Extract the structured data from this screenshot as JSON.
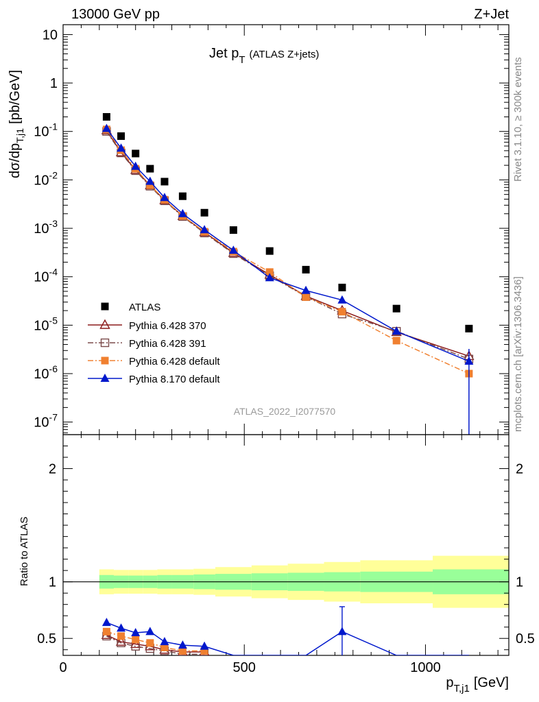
{
  "header": {
    "left": "13000 GeV pp",
    "right": "Z+Jet"
  },
  "plot_title": "Jet p",
  "plot_title_sub": "T",
  "plot_title_suffix": "(ATLAS Z+jets)",
  "analysis_id": "ATLAS_2022_I2077570",
  "side_top": "Rivet 3.1.10, ≥ 300k events",
  "side_bottom": "mcplots.cern.ch [arXiv:1306.3436]",
  "ylabel_main": "dσ/dp",
  "ylabel_main_sub": "T,j1",
  "ylabel_main_unit": "[pb/GeV]",
  "ylabel_ratio": "Ratio to ATLAS",
  "xlabel": "p",
  "xlabel_sub": "T,j1",
  "xlabel_unit": "[GeV]",
  "chart_data": {
    "type": "scatter",
    "x_axis": {
      "range": [
        0,
        1230
      ],
      "ticks": [
        0,
        500,
        1000
      ]
    },
    "y_axis_main": {
      "scale": "log",
      "range": [
        5.5e-08,
        16
      ],
      "tick_exponents": [
        -7,
        -6,
        -5,
        -4,
        -3,
        -2,
        -1,
        0,
        1
      ]
    },
    "y_axis_ratio": {
      "range": [
        0.35,
        2.3
      ],
      "ticks": [
        0.5,
        1,
        2
      ]
    },
    "legend": "bottom-left",
    "x": [
      120,
      160,
      200,
      240,
      280,
      330,
      390,
      470,
      570,
      670,
      770,
      920,
      1120
    ],
    "bin_edges": [
      100,
      140,
      180,
      220,
      260,
      300,
      360,
      420,
      520,
      620,
      720,
      820,
      1020,
      1230
    ],
    "data_band_inner": [
      0.06,
      0.055,
      0.055,
      0.055,
      0.06,
      0.06,
      0.065,
      0.07,
      0.075,
      0.08,
      0.085,
      0.09,
      0.11
    ],
    "data_band_outer": [
      0.11,
      0.105,
      0.105,
      0.105,
      0.11,
      0.11,
      0.115,
      0.13,
      0.145,
      0.16,
      0.175,
      0.19,
      0.23
    ],
    "series": [
      {
        "name": "ATLAS",
        "color": "#000000",
        "marker": "square",
        "values": [
          0.2,
          0.08,
          0.035,
          0.017,
          0.0092,
          0.0046,
          0.0021,
          0.00092,
          0.00034,
          0.00014,
          6e-05,
          2.2e-05,
          8.5e-06
        ]
      },
      {
        "name": "Pythia 6.428 370",
        "color": "#8b1a1a",
        "marker": "triangle-open",
        "dash": "",
        "values": [
          0.105,
          0.037,
          0.016,
          0.0077,
          0.0038,
          0.0018,
          0.00083,
          0.00031,
          0.00011,
          4e-05,
          2e-05,
          7.2e-06,
          2.3e-06
        ],
        "ratio": [
          0.53,
          0.47,
          0.45,
          0.43,
          0.4,
          0.38,
          0.38
        ]
      },
      {
        "name": "Pythia 6.428 391",
        "color": "#7a4a4a",
        "marker": "square-open",
        "dash": "8,3,2,3",
        "values": [
          0.1,
          0.036,
          0.0155,
          0.0074,
          0.0037,
          0.00175,
          0.0008,
          0.0003,
          0.000105,
          3.9e-05,
          1.7e-05,
          7.5e-06,
          2e-06
        ],
        "ratio": [
          0.52,
          0.46,
          0.43,
          0.41,
          0.39,
          0.36,
          0.36
        ]
      },
      {
        "name": "Pythia 6.428 default",
        "color": "#f08030",
        "marker": "square",
        "dash": "8,3,2,3",
        "values": [
          0.11,
          0.041,
          0.017,
          0.0078,
          0.0039,
          0.0018,
          0.00085,
          0.00033,
          0.000125,
          3.8e-05,
          1.9e-05,
          4.8e-06,
          1e-06
        ],
        "ratio": [
          0.56,
          0.52,
          0.49,
          0.46,
          0.42,
          0.39,
          0.39
        ]
      },
      {
        "name": "Pythia 8.170 default",
        "color": "#0018cc",
        "marker": "triangle",
        "dash": "",
        "values": [
          0.115,
          0.045,
          0.019,
          0.0093,
          0.0043,
          0.002,
          0.00093,
          0.00035,
          9.5e-05,
          5.2e-05,
          3.3e-05,
          7.5e-06,
          1.8e-06
        ],
        "ratio": [
          0.64,
          0.59,
          0.55,
          0.56,
          0.47,
          0.44,
          0.43,
          0.35,
          0.35,
          0.35,
          0.56,
          0.35,
          0.35
        ]
      }
    ]
  }
}
